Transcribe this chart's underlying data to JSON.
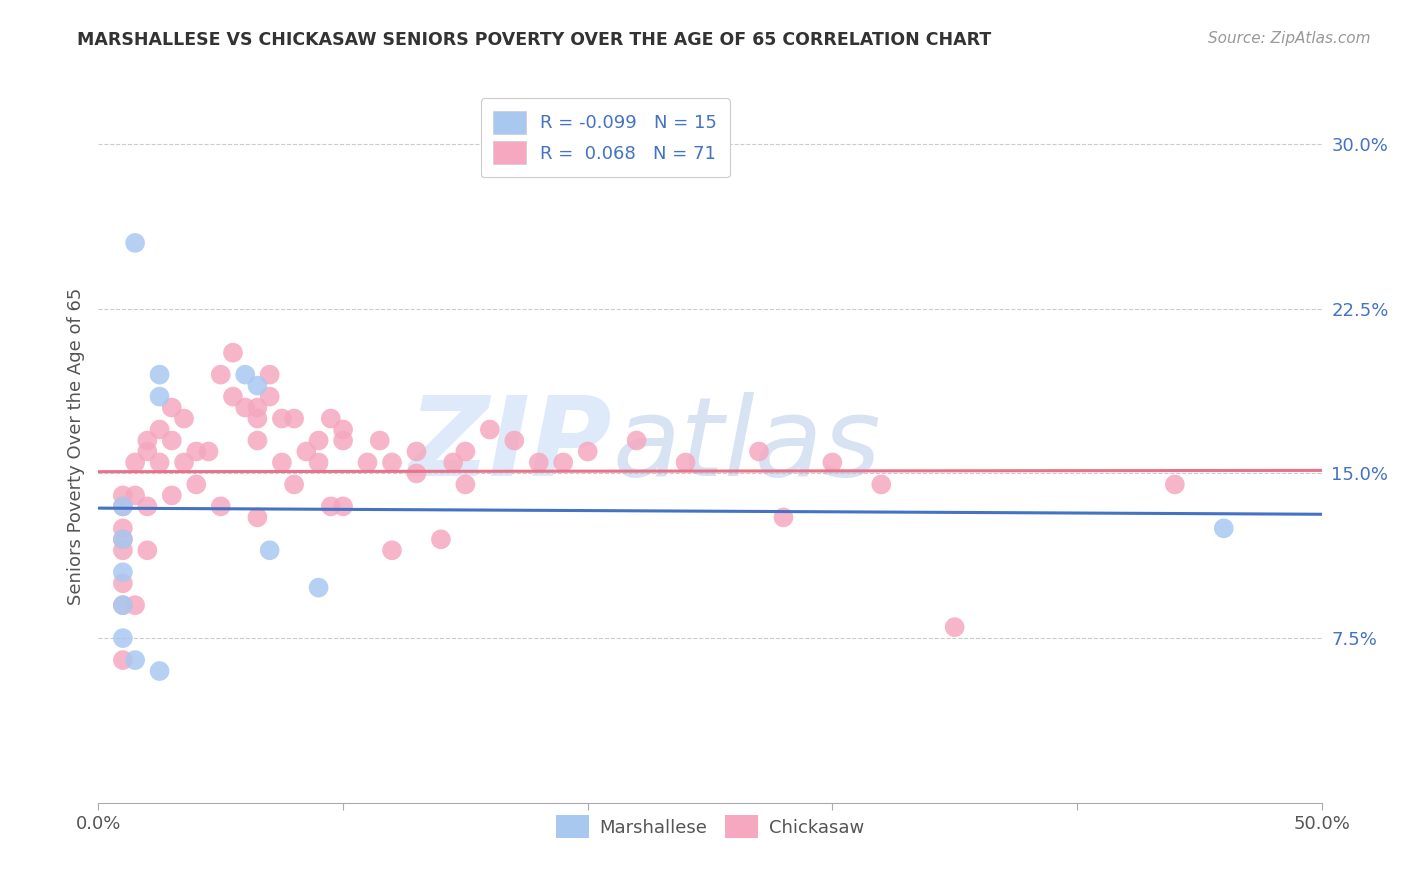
{
  "title": "MARSHALLESE VS CHICKASAW SENIORS POVERTY OVER THE AGE OF 65 CORRELATION CHART",
  "source_text": "Source: ZipAtlas.com",
  "ylabel": "Seniors Poverty Over the Age of 65",
  "xlim": [
    0.0,
    0.5
  ],
  "ylim": [
    0.0,
    0.325
  ],
  "xticks": [
    0.0,
    0.1,
    0.2,
    0.3,
    0.4,
    0.5
  ],
  "xticklabels": [
    "0.0%",
    "",
    "",
    "",
    "",
    "50.0%"
  ],
  "yticks_right": [
    0.075,
    0.15,
    0.225,
    0.3
  ],
  "ytick_right_labels": [
    "7.5%",
    "15.0%",
    "22.5%",
    "30.0%"
  ],
  "watermark_zip": "ZIP",
  "watermark_atlas": "atlas",
  "legend_r1": "R = -0.099",
  "legend_n1": "N = 15",
  "legend_r2": "R =  0.068",
  "legend_n2": "N = 71",
  "marshallese_color": "#a8c8f0",
  "chickasaw_color": "#f5a8c0",
  "marshallese_line_color": "#4472c4",
  "chickasaw_line_color": "#e8728a",
  "marshallese_x": [
    0.01,
    0.01,
    0.01,
    0.01,
    0.01,
    0.015,
    0.015,
    0.025,
    0.025,
    0.025,
    0.06,
    0.065,
    0.07,
    0.09,
    0.46
  ],
  "marshallese_y": [
    0.135,
    0.12,
    0.105,
    0.09,
    0.075,
    0.255,
    0.065,
    0.195,
    0.185,
    0.06,
    0.195,
    0.19,
    0.115,
    0.098,
    0.125
  ],
  "chickasaw_x": [
    0.01,
    0.01,
    0.01,
    0.01,
    0.01,
    0.01,
    0.01,
    0.01,
    0.015,
    0.015,
    0.015,
    0.02,
    0.02,
    0.02,
    0.02,
    0.025,
    0.025,
    0.03,
    0.03,
    0.03,
    0.035,
    0.035,
    0.04,
    0.04,
    0.045,
    0.05,
    0.05,
    0.055,
    0.055,
    0.06,
    0.065,
    0.065,
    0.065,
    0.065,
    0.07,
    0.07,
    0.075,
    0.075,
    0.08,
    0.08,
    0.085,
    0.09,
    0.09,
    0.095,
    0.095,
    0.1,
    0.1,
    0.1,
    0.11,
    0.115,
    0.12,
    0.12,
    0.13,
    0.13,
    0.14,
    0.145,
    0.15,
    0.15,
    0.16,
    0.17,
    0.18,
    0.19,
    0.2,
    0.22,
    0.24,
    0.27,
    0.28,
    0.3,
    0.32,
    0.35,
    0.44
  ],
  "chickasaw_y": [
    0.14,
    0.135,
    0.125,
    0.12,
    0.115,
    0.1,
    0.09,
    0.065,
    0.155,
    0.14,
    0.09,
    0.165,
    0.16,
    0.135,
    0.115,
    0.17,
    0.155,
    0.18,
    0.165,
    0.14,
    0.175,
    0.155,
    0.16,
    0.145,
    0.16,
    0.195,
    0.135,
    0.205,
    0.185,
    0.18,
    0.18,
    0.175,
    0.165,
    0.13,
    0.195,
    0.185,
    0.175,
    0.155,
    0.175,
    0.145,
    0.16,
    0.165,
    0.155,
    0.175,
    0.135,
    0.17,
    0.165,
    0.135,
    0.155,
    0.165,
    0.155,
    0.115,
    0.16,
    0.15,
    0.12,
    0.155,
    0.16,
    0.145,
    0.17,
    0.165,
    0.155,
    0.155,
    0.16,
    0.165,
    0.155,
    0.16,
    0.13,
    0.155,
    0.145,
    0.08,
    0.145
  ]
}
